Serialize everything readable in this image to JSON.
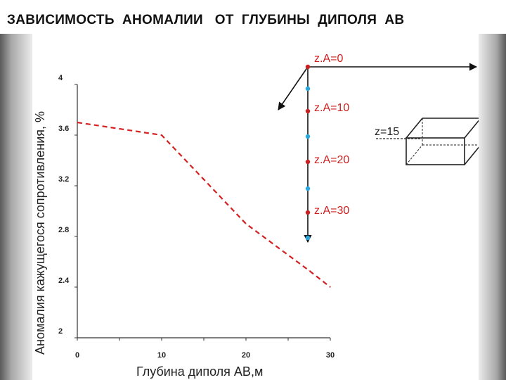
{
  "slide": {
    "title": "ЗАВИСИМОСТЬ  АНОМАЛИИ   ОТ  ГЛУБИНЫ  ДИПОЛЯ  АВ"
  },
  "colors": {
    "curve": "#d42020",
    "marker_red": "#cc1f1f",
    "marker_blue": "#29a8e0",
    "axis": "#333333",
    "arrow": "#111111"
  },
  "chart_data": {
    "type": "line",
    "title": "",
    "xlabel": "Глубина диполя  АВ,м",
    "ylabel": "Аномалия кажущегося  сопротивления, %",
    "xlim": [
      0,
      30
    ],
    "ylim": [
      2,
      4
    ],
    "x_ticks": [
      0,
      10,
      20,
      30
    ],
    "x_tick_labels": [
      "0",
      "10",
      "20",
      "30"
    ],
    "y_ticks": [
      2,
      2.4,
      2.8,
      3.2,
      3.6,
      4
    ],
    "y_tick_labels": [
      "2",
      "2.4",
      "2.8",
      "3.2",
      "3.6",
      "4"
    ],
    "grid": false,
    "line_style": "dashed",
    "x": [
      0,
      10,
      20,
      27.5,
      30
    ],
    "y": [
      3.7,
      3.6,
      2.9,
      2.53,
      2.4
    ]
  },
  "schematic": {
    "depth_labels": [
      "z.A=0",
      "z.A=10",
      "z.A=20",
      "z.A=30"
    ],
    "body_label": "z=15"
  }
}
